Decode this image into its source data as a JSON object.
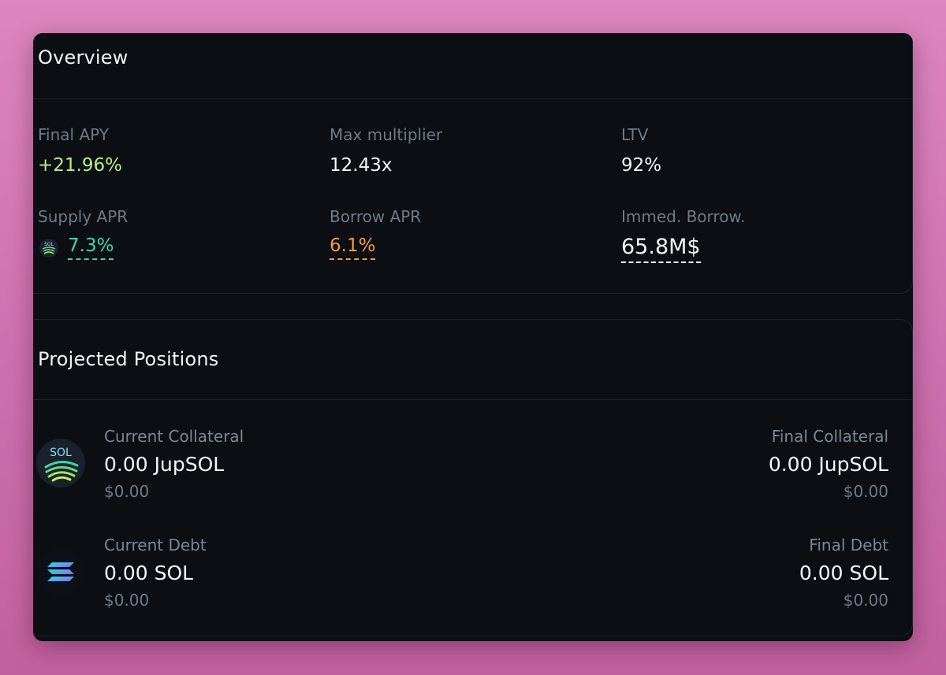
{
  "overview": {
    "title": "Overview",
    "final_apy": {
      "label": "Final APY",
      "value": "+21.96%",
      "color": "#b8f07a"
    },
    "max_multiplier": {
      "label": "Max multiplier",
      "value": "12.43x"
    },
    "ltv": {
      "label": "LTV",
      "value": "92%"
    },
    "supply_apr": {
      "label": "Supply APR",
      "value": "7.3%",
      "color": "#3fd6a9",
      "token_icon": "jupsol-token-icon",
      "token_icon_text": "SOL"
    },
    "borrow_apr": {
      "label": "Borrow APR",
      "value": "6.1%",
      "color": "#f59a42"
    },
    "immed_borrow": {
      "label": "Immed. Borrow.",
      "value": "65.8M$"
    }
  },
  "positions": {
    "title": "Projected Positions",
    "collateral": {
      "icon": "jupsol-token-icon",
      "icon_text": "SOL",
      "current_label": "Current Collateral",
      "current_amount": "0.00 JupSOL",
      "current_usd": "$0.00",
      "final_label": "Final Collateral",
      "final_amount": "0.00 JupSOL",
      "final_usd": "$0.00"
    },
    "debt": {
      "icon": "solana-token-icon",
      "current_label": "Current Debt",
      "current_amount": "0.00 SOL",
      "current_usd": "$0.00",
      "final_label": "Final Debt",
      "final_amount": "0.00 SOL",
      "final_usd": "$0.00"
    }
  }
}
